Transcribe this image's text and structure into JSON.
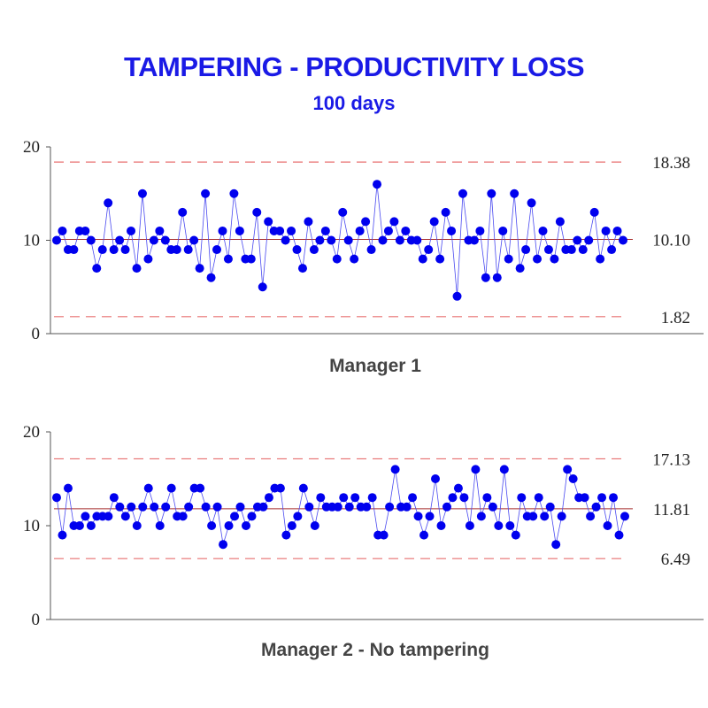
{
  "title": "TAMPERING - PRODUCTIVITY LOSS",
  "subtitle": "100 days",
  "colors": {
    "title": "#1a1ae6",
    "points": "#0000ee",
    "line": "#4a4af0",
    "center": "#a52a2a",
    "limits": "#e87070"
  },
  "chart_data": [
    {
      "type": "line",
      "label": "Manager 1",
      "ylim": [
        0,
        20
      ],
      "yticks": [
        "0",
        "10",
        "20"
      ],
      "center": 10.1,
      "ucl": 18.38,
      "lcl": 1.82,
      "center_label": "10.10",
      "ucl_label": "18.38",
      "lcl_label": "1.82",
      "values": [
        10,
        11,
        9,
        9,
        11,
        11,
        10,
        7,
        9,
        14,
        9,
        10,
        9,
        11,
        7,
        15,
        8,
        10,
        11,
        10,
        9,
        9,
        13,
        9,
        10,
        7,
        15,
        6,
        9,
        11,
        8,
        15,
        11,
        8,
        8,
        13,
        5,
        12,
        11,
        11,
        10,
        11,
        9,
        7,
        12,
        9,
        10,
        11,
        10,
        8,
        13,
        10,
        8,
        11,
        12,
        9,
        16,
        10,
        11,
        12,
        10,
        11,
        10,
        10,
        8,
        9,
        12,
        8,
        13,
        11,
        4,
        15,
        10,
        10,
        11,
        6,
        15,
        6,
        11,
        8,
        15,
        7,
        9,
        14,
        8,
        11,
        9,
        8,
        12,
        9,
        9,
        10,
        9,
        10,
        13,
        8,
        11,
        9,
        11,
        10
      ]
    },
    {
      "type": "line",
      "label": "Manager 2 - No tampering",
      "ylim": [
        0,
        20
      ],
      "yticks": [
        "0",
        "10",
        "20"
      ],
      "center": 11.81,
      "ucl": 17.13,
      "lcl": 6.49,
      "center_label": "11.81",
      "ucl_label": "17.13",
      "lcl_label": "6.49",
      "values": [
        13,
        9,
        14,
        10,
        10,
        11,
        10,
        11,
        11,
        11,
        13,
        12,
        11,
        12,
        10,
        12,
        14,
        12,
        10,
        12,
        14,
        11,
        11,
        12,
        14,
        14,
        12,
        10,
        12,
        8,
        10,
        11,
        12,
        10,
        11,
        12,
        12,
        13,
        14,
        14,
        9,
        10,
        11,
        14,
        12,
        10,
        13,
        12,
        12,
        12,
        13,
        12,
        13,
        12,
        12,
        13,
        9,
        9,
        12,
        16,
        12,
        12,
        13,
        11,
        9,
        11,
        15,
        10,
        12,
        13,
        14,
        13,
        10,
        16,
        11,
        13,
        12,
        10,
        16,
        10,
        9,
        13,
        11,
        11,
        13,
        11,
        12,
        8,
        11,
        16,
        15,
        13,
        13,
        11,
        12,
        13,
        10,
        13,
        9,
        11
      ]
    }
  ]
}
